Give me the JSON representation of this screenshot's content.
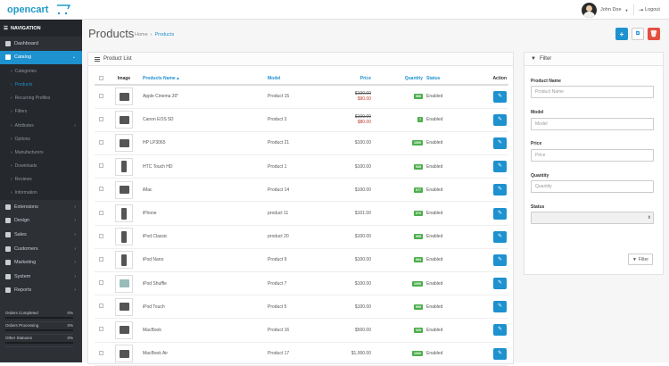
{
  "header": {
    "logo_text": "opencart",
    "user_name": "John Doe",
    "logout_label": "Logout"
  },
  "sidebar": {
    "title": "NAVIGATION",
    "items": [
      {
        "label": "Dashboard",
        "icon": "dashboard-icon"
      },
      {
        "label": "Catalog",
        "icon": "tag-icon",
        "active": true
      },
      {
        "label": "Extensions",
        "icon": "puzzle-icon"
      },
      {
        "label": "Design",
        "icon": "monitor-icon"
      },
      {
        "label": "Sales",
        "icon": "cart-icon"
      },
      {
        "label": "Customers",
        "icon": "user-icon"
      },
      {
        "label": "Marketing",
        "icon": "share-icon"
      },
      {
        "label": "System",
        "icon": "gear-icon"
      },
      {
        "label": "Reports",
        "icon": "bar-chart-icon"
      }
    ],
    "catalog_sub": [
      "Categories",
      "Products",
      "Recurring Profiles",
      "Filters",
      "Attributes",
      "Options",
      "Manufacturers",
      "Downloads",
      "Reviews",
      "Information"
    ],
    "stats": [
      {
        "label": "Orders Completed",
        "value": "0%"
      },
      {
        "label": "Orders Processing",
        "value": "0%"
      },
      {
        "label": "Other Statuses",
        "value": "0%"
      }
    ]
  },
  "page": {
    "title": "Products",
    "breadcrumb_home": "Home",
    "breadcrumb_current": "Products"
  },
  "list": {
    "heading": "Product List",
    "columns": {
      "image": "Image",
      "name": "Products Name",
      "model": "Model",
      "price": "Price",
      "quantity": "Quantity",
      "status": "Status",
      "action": "Action"
    },
    "rows": [
      {
        "name": "Apple Cinema 30\"",
        "model": "Product 15",
        "price": "$100.00",
        "special": "$90.00",
        "qty": "990",
        "status": "Enabled"
      },
      {
        "name": "Canon EOS 5D",
        "model": "Product 3",
        "price": "$100.00",
        "special": "$80.00",
        "qty": "7",
        "status": "Enabled"
      },
      {
        "name": "HP LP3065",
        "model": "Product 21",
        "price": "$100.00",
        "qty": "1000",
        "status": "Enabled"
      },
      {
        "name": "HTC Touch HD",
        "model": "Product 1",
        "price": "$100.00",
        "qty": "939",
        "status": "Enabled"
      },
      {
        "name": "iMac",
        "model": "Product 14",
        "price": "$100.00",
        "qty": "977",
        "status": "Enabled"
      },
      {
        "name": "iPhone",
        "model": "product 11",
        "price": "$101.00",
        "qty": "970",
        "status": "Enabled"
      },
      {
        "name": "iPod Classic",
        "model": "product 20",
        "price": "$100.00",
        "qty": "995",
        "status": "Enabled"
      },
      {
        "name": "iPod Nano",
        "model": "Product 9",
        "price": "$100.00",
        "qty": "994",
        "status": "Enabled"
      },
      {
        "name": "iPod Shuffle",
        "model": "Product 7",
        "price": "$100.00",
        "qty": "1000",
        "status": "Enabled"
      },
      {
        "name": "iPod Touch",
        "model": "Product 5",
        "price": "$100.00",
        "qty": "999",
        "status": "Enabled"
      },
      {
        "name": "MacBook",
        "model": "Product 16",
        "price": "$500.00",
        "qty": "929",
        "status": "Enabled"
      },
      {
        "name": "MacBook Air",
        "model": "Product 17",
        "price": "$1,000.00",
        "qty": "1000",
        "status": "Enabled"
      }
    ]
  },
  "filter": {
    "heading": "Filter",
    "name_label": "Product Name",
    "name_placeholder": "Product Name",
    "model_label": "Model",
    "model_placeholder": "Model",
    "price_label": "Price",
    "price_placeholder": "Price",
    "quantity_label": "Quantity",
    "quantity_placeholder": "Quantity",
    "status_label": "Status",
    "button_label": "Filter"
  },
  "colors": {
    "accent": "#1e91cf",
    "danger": "#e3503e",
    "success": "#4cae4c",
    "sidebar": "#2d3035"
  }
}
